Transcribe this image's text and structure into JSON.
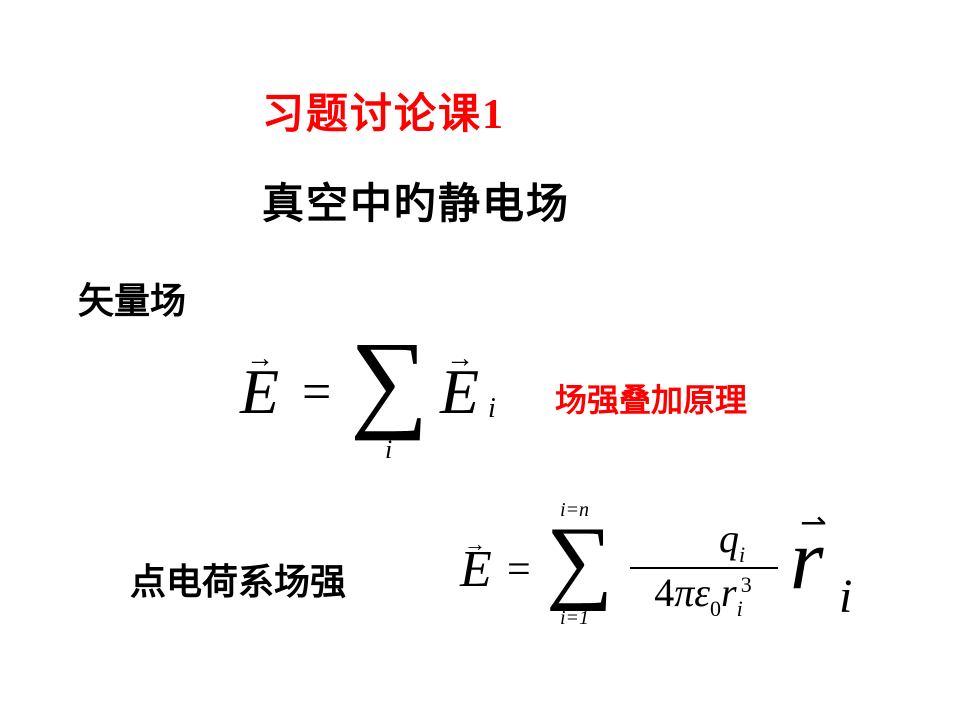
{
  "colors": {
    "background": "#ffffff",
    "text": "#000000",
    "accent": "#ff0000"
  },
  "typography": {
    "cjk_font": "SimSun",
    "math_font": "Times New Roman",
    "title_fontsize": 42,
    "label_fontsize": 36,
    "sublabel_fontsize": 32
  },
  "title": "习题讨论课1",
  "subtitle": "真空中旳静电场",
  "labels": {
    "vector_field": "矢量场",
    "superposition": "场强叠加原理",
    "point_charge_system": "点电荷系场强"
  },
  "equation1": {
    "description": "E vector equals sum over i of E_i vector",
    "lhs_symbol": "E",
    "lhs_arrow": "→",
    "operator": "=",
    "sigma": "∑",
    "sigma_sub": "i",
    "rhs_symbol": "E",
    "rhs_arrow": "→",
    "rhs_sub": "i"
  },
  "equation2": {
    "description": "E vector equals sum i=1 to n of q_i over 4 pi epsilon0 r_i^3 times r_i vector",
    "lhs_symbol": "E",
    "lhs_arrow": "→",
    "operator": "=",
    "sigma": "∑",
    "sigma_upper": "i=n",
    "sigma_lower": "i=1",
    "numerator_base": "q",
    "numerator_sub": "i",
    "denom_4": "4",
    "denom_pi": "π",
    "denom_eps": "ε",
    "denom_eps_sub": "0",
    "denom_r": "r",
    "denom_r_sub": "i",
    "denom_r_sup": "3",
    "tail_symbol": "r",
    "tail_arrow": "⇀",
    "tail_sub": "i"
  }
}
